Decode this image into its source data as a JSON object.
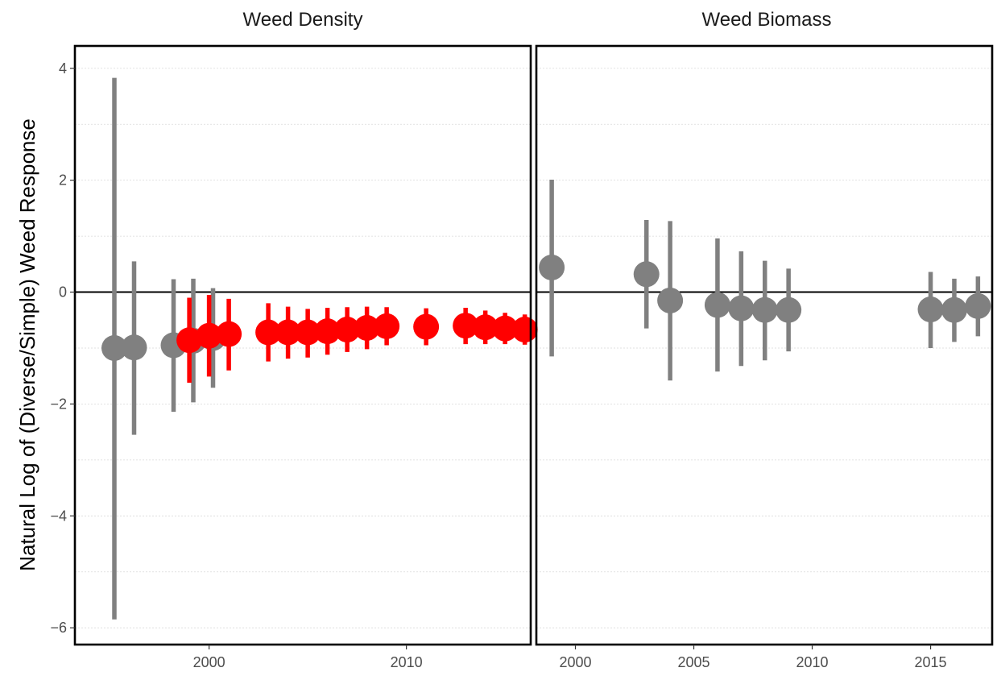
{
  "chart_data": {
    "type": "scatter",
    "ylabel": "Natural Log of (Diverse/Simple) Weed Response",
    "ylim": [
      -6.3,
      4.4
    ],
    "yticks": [
      4,
      2,
      0,
      -2,
      -4,
      -6
    ],
    "ytick_labels": [
      "4",
      "2",
      "0",
      "−2",
      "−4",
      "−6"
    ],
    "grid": "y-only dotted",
    "reference_line": 0,
    "colors": {
      "significant": "#ff0000",
      "non_significant": "#808080"
    },
    "panels": [
      {
        "title": "Weed Density",
        "xlim": [
          1993.2,
          2016.3
        ],
        "xticks": [
          2000,
          2010
        ],
        "points": [
          {
            "x": 1995.2,
            "y": -1.0,
            "lo": -5.85,
            "hi": 3.83,
            "significant": false
          },
          {
            "x": 1996.2,
            "y": -0.99,
            "lo": -2.55,
            "hi": 0.55,
            "significant": false
          },
          {
            "x": 1998.2,
            "y": -0.95,
            "lo": -2.14,
            "hi": 0.23,
            "significant": false
          },
          {
            "x": 1999.2,
            "y": -0.87,
            "lo": -1.97,
            "hi": 0.24,
            "significant": false
          },
          {
            "x": 2000.2,
            "y": -0.82,
            "lo": -1.71,
            "hi": 0.07,
            "significant": false
          },
          {
            "x": 1999.0,
            "y": -0.86,
            "lo": -1.62,
            "hi": -0.1,
            "significant": true
          },
          {
            "x": 2000.0,
            "y": -0.78,
            "lo": -1.51,
            "hi": -0.05,
            "significant": true
          },
          {
            "x": 2001.0,
            "y": -0.75,
            "lo": -1.4,
            "hi": -0.12,
            "significant": true
          },
          {
            "x": 2003.0,
            "y": -0.72,
            "lo": -1.24,
            "hi": -0.2,
            "significant": true
          },
          {
            "x": 2004.0,
            "y": -0.72,
            "lo": -1.19,
            "hi": -0.26,
            "significant": true
          },
          {
            "x": 2005.0,
            "y": -0.72,
            "lo": -1.17,
            "hi": -0.3,
            "significant": true
          },
          {
            "x": 2006.0,
            "y": -0.7,
            "lo": -1.12,
            "hi": -0.28,
            "significant": true
          },
          {
            "x": 2007.0,
            "y": -0.67,
            "lo": -1.07,
            "hi": -0.27,
            "significant": true
          },
          {
            "x": 2008.0,
            "y": -0.64,
            "lo": -1.02,
            "hi": -0.26,
            "significant": true
          },
          {
            "x": 2009.0,
            "y": -0.61,
            "lo": -0.95,
            "hi": -0.27,
            "significant": true
          },
          {
            "x": 2011.0,
            "y": -0.62,
            "lo": -0.95,
            "hi": -0.29,
            "significant": true
          },
          {
            "x": 2013.0,
            "y": -0.6,
            "lo": -0.93,
            "hi": -0.28,
            "significant": true
          },
          {
            "x": 2014.0,
            "y": -0.63,
            "lo": -0.93,
            "hi": -0.33,
            "significant": true
          },
          {
            "x": 2015.0,
            "y": -0.65,
            "lo": -0.93,
            "hi": -0.37,
            "significant": true
          },
          {
            "x": 2016.0,
            "y": -0.67,
            "lo": -0.94,
            "hi": -0.4,
            "significant": true
          }
        ]
      },
      {
        "title": "Weed Biomass",
        "xlim": [
          1998.35,
          2017.6
        ],
        "xticks": [
          2000,
          2005,
          2010,
          2015
        ],
        "points": [
          {
            "x": 1999,
            "y": 0.44,
            "lo": -1.15,
            "hi": 2.01,
            "significant": false
          },
          {
            "x": 2003,
            "y": 0.32,
            "lo": -0.65,
            "hi": 1.29,
            "significant": false
          },
          {
            "x": 2004,
            "y": -0.15,
            "lo": -1.58,
            "hi": 1.27,
            "significant": false
          },
          {
            "x": 2006,
            "y": -0.23,
            "lo": -1.42,
            "hi": 0.96,
            "significant": false
          },
          {
            "x": 2007,
            "y": -0.29,
            "lo": -1.32,
            "hi": 0.73,
            "significant": false
          },
          {
            "x": 2008,
            "y": -0.32,
            "lo": -1.22,
            "hi": 0.56,
            "significant": false
          },
          {
            "x": 2009,
            "y": -0.32,
            "lo": -1.06,
            "hi": 0.42,
            "significant": false
          },
          {
            "x": 2015,
            "y": -0.31,
            "lo": -1.0,
            "hi": 0.36,
            "significant": false
          },
          {
            "x": 2016,
            "y": -0.32,
            "lo": -0.89,
            "hi": 0.24,
            "significant": false
          },
          {
            "x": 2017,
            "y": -0.25,
            "lo": -0.79,
            "hi": 0.28,
            "significant": false
          }
        ]
      }
    ]
  }
}
